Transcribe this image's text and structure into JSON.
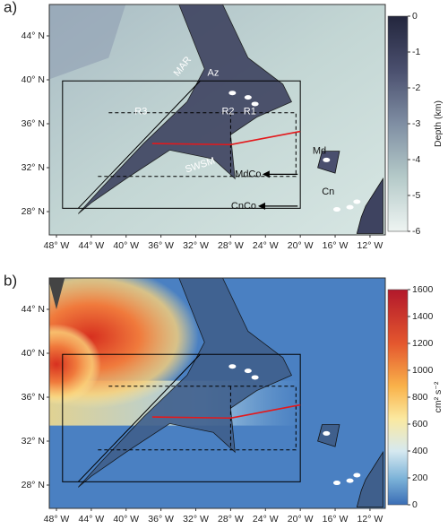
{
  "panels": [
    {
      "label": "a)",
      "lat_ticks": [
        {
          "value": 44,
          "label": "44° N"
        },
        {
          "value": 40,
          "label": "40° N"
        },
        {
          "value": 36,
          "label": "36° N"
        },
        {
          "value": 32,
          "label": "32° N"
        },
        {
          "value": 28,
          "label": "28° N"
        }
      ],
      "lon_ticks": [
        {
          "value": -48,
          "label": "48° W"
        },
        {
          "value": -44,
          "label": "44° W"
        },
        {
          "value": -40,
          "label": "40° W"
        },
        {
          "value": -36,
          "label": "36° W"
        },
        {
          "value": -32,
          "label": "32° W"
        },
        {
          "value": -28,
          "label": "28° W"
        },
        {
          "value": -24,
          "label": "24° W"
        },
        {
          "value": -20,
          "label": "20° W"
        },
        {
          "value": -16,
          "label": "16° W"
        },
        {
          "value": -12,
          "label": "12° W"
        }
      ],
      "colorbar": {
        "title": "Depth (km)",
        "ticks": [
          0,
          -1,
          -2,
          -3,
          -4,
          -5,
          -6
        ]
      },
      "annotations": [
        "MAR",
        "Az",
        "R3",
        "R2",
        "R1",
        "SWSM",
        "Md",
        "MdCo",
        "Cn",
        "CnCo"
      ]
    },
    {
      "label": "b)",
      "lat_ticks": [
        {
          "value": 44,
          "label": "44° N"
        },
        {
          "value": 40,
          "label": "40° N"
        },
        {
          "value": 36,
          "label": "36° N"
        },
        {
          "value": 32,
          "label": "32° N"
        },
        {
          "value": 28,
          "label": "28° N"
        }
      ],
      "lon_ticks": [
        {
          "value": -48,
          "label": "48° W"
        },
        {
          "value": -44,
          "label": "44° W"
        },
        {
          "value": -40,
          "label": "40° W"
        },
        {
          "value": -36,
          "label": "36° W"
        },
        {
          "value": -32,
          "label": "32° W"
        },
        {
          "value": -28,
          "label": "28° W"
        },
        {
          "value": -24,
          "label": "24° W"
        },
        {
          "value": -20,
          "label": "20° W"
        },
        {
          "value": -16,
          "label": "16° W"
        },
        {
          "value": -12,
          "label": "12° W"
        }
      ],
      "colorbar": {
        "title": "cm² s⁻²",
        "ticks": [
          0,
          200,
          400,
          600,
          800,
          1000,
          1200,
          1400,
          1600
        ]
      },
      "annotations": []
    }
  ]
}
